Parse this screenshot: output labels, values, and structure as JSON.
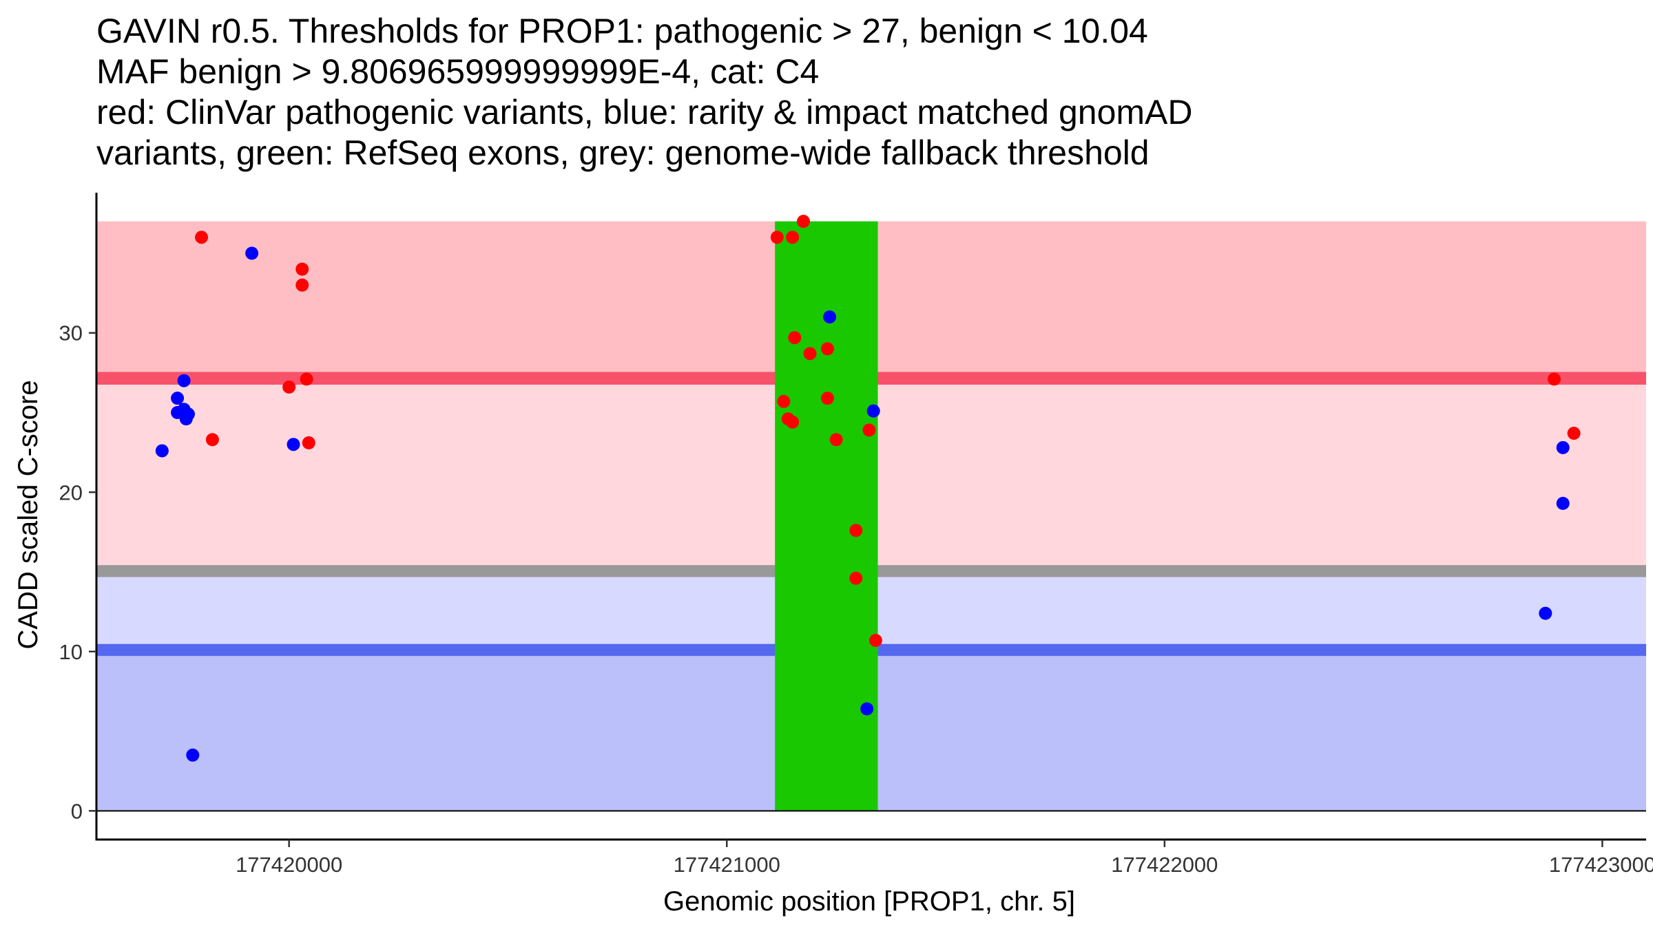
{
  "chart_data": {
    "type": "scatter",
    "title_lines": [
      "GAVIN r0.5. Thresholds for PROP1: pathogenic > 27, benign < 10.04",
      "MAF benign > 9.806965999999999E-4, cat: C4",
      "red: ClinVar pathogenic variants, blue: rarity & impact matched gnomAD",
      "variants, green: RefSeq exons, grey: genome-wide fallback threshold"
    ],
    "xlabel": "Genomic position [PROP1, chr. 5]",
    "ylabel": "CADD scaled C-score",
    "xlim": [
      177419560,
      177423100
    ],
    "ylim": [
      -1.8,
      38.8
    ],
    "x_ticks": [
      177420000,
      177421000,
      177422000,
      177423000
    ],
    "x_tick_labels": [
      "177420000",
      "177421000",
      "177422000",
      "177423000"
    ],
    "y_ticks": [
      0,
      10,
      20,
      30
    ],
    "y_tick_labels": [
      "0",
      "10",
      "20",
      "30"
    ],
    "grid": false,
    "colors": {
      "pathogenic_zone": "#FFBEC3",
      "pathogenic_line": "#F7526A",
      "between_zone": "#FFD7DD",
      "fallback_line": "#999999",
      "benign_upper_zone": "#D7D9FF",
      "benign_line": "#5568F0",
      "benign_zone": "#BBC0FA",
      "exon": "#1AC800",
      "clinvar": "#FF0000",
      "gnomad": "#0000FF"
    },
    "bands": [
      {
        "name": "pathogenic-zone",
        "ymin": 27,
        "ymax": 37,
        "color_key": "pathogenic_zone"
      },
      {
        "name": "intermediate-zone",
        "ymin": 15.3,
        "ymax": 27,
        "color_key": "between_zone"
      },
      {
        "name": "benign-upper-zone",
        "ymin": 10.04,
        "ymax": 15.3,
        "color_key": "benign_upper_zone"
      },
      {
        "name": "benign-zone",
        "ymin": 0,
        "ymax": 10.04,
        "color_key": "benign_zone"
      }
    ],
    "threshold_lines": [
      {
        "name": "pathogenic-threshold-line",
        "y": 27.15,
        "width_units": 0.8,
        "color_key": "pathogenic_line"
      },
      {
        "name": "fallback-threshold-line",
        "y": 15.05,
        "width_units": 0.75,
        "color_key": "fallback_line"
      },
      {
        "name": "benign-threshold-line",
        "y": 10.1,
        "width_units": 0.75,
        "color_key": "benign_line"
      }
    ],
    "exons": [
      {
        "start": 177421110,
        "end": 177421345,
        "ymin": 0,
        "ymax": 37
      }
    ],
    "band_x_range": [
      177419560,
      177423100
    ],
    "series": [
      {
        "name": "ClinVar pathogenic variants",
        "color_key": "clinvar",
        "points": [
          [
            177419800,
            36
          ],
          [
            177419825,
            23.3
          ],
          [
            177420030,
            34
          ],
          [
            177420030,
            33
          ],
          [
            177420040,
            27.1
          ],
          [
            177420000,
            26.6
          ],
          [
            177420045,
            23.1
          ],
          [
            177421115,
            36
          ],
          [
            177421150,
            36
          ],
          [
            177421175,
            37
          ],
          [
            177421155,
            29.7
          ],
          [
            177421190,
            28.7
          ],
          [
            177421230,
            29
          ],
          [
            177421130,
            25.7
          ],
          [
            177421140,
            24.6
          ],
          [
            177421150,
            24.4
          ],
          [
            177421230,
            25.9
          ],
          [
            177421250,
            23.3
          ],
          [
            177421325,
            23.9
          ],
          [
            177421295,
            17.6
          ],
          [
            177421295,
            14.6
          ],
          [
            177421340,
            10.7
          ],
          [
            177422890,
            27.1
          ],
          [
            177422935,
            23.7
          ]
        ]
      },
      {
        "name": "rarity & impact matched gnomAD variants",
        "color_key": "gnomad",
        "points": [
          [
            177419710,
            22.6
          ],
          [
            177419760,
            27
          ],
          [
            177419745,
            25.9
          ],
          [
            177419745,
            25
          ],
          [
            177419760,
            25.2
          ],
          [
            177419770,
            24.9
          ],
          [
            177419765,
            24.6
          ],
          [
            177419780,
            3.5
          ],
          [
            177419915,
            35
          ],
          [
            177420010,
            23
          ],
          [
            177421235,
            31
          ],
          [
            177421335,
            25.1
          ],
          [
            177421320,
            6.4
          ],
          [
            177422910,
            22.8
          ],
          [
            177422910,
            19.3
          ],
          [
            177422870,
            12.4
          ]
        ]
      }
    ]
  }
}
